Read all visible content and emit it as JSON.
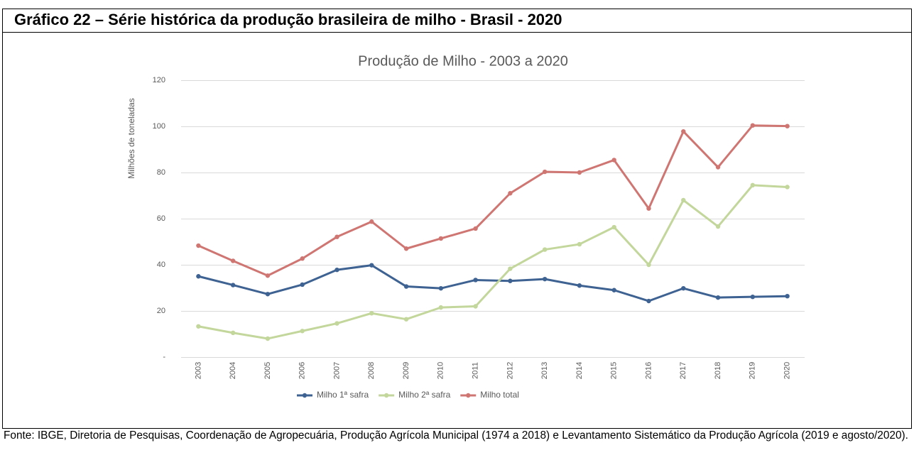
{
  "header": {
    "title": "Gráfico 22 – Série histórica da produção brasileira de milho - Brasil - 2020"
  },
  "chart_data": {
    "type": "line",
    "title": "Produção de Milho - 2003 a 2020",
    "y_label": "Milhões de toneladas",
    "categories": [
      "2003",
      "2004",
      "2005",
      "2006",
      "2007",
      "2008",
      "2009",
      "2010",
      "2011",
      "2012",
      "2013",
      "2014",
      "2015",
      "2016",
      "2017",
      "2018",
      "2019",
      "2020"
    ],
    "series": [
      {
        "name": "Milho 1ª safra",
        "color": "#3e6292",
        "values": [
          35.0,
          31.2,
          27.3,
          31.4,
          37.8,
          39.8,
          30.6,
          29.8,
          33.4,
          33.0,
          33.8,
          31.0,
          29.0,
          24.3,
          29.8,
          25.8,
          26.1,
          26.4
        ]
      },
      {
        "name": "Milho 2ª safra",
        "color": "#c3d69b",
        "values": [
          13.3,
          10.5,
          8.0,
          11.3,
          14.6,
          19.0,
          16.4,
          21.5,
          22.0,
          38.3,
          46.6,
          48.9,
          56.3,
          40.0,
          68.0,
          56.6,
          74.5,
          73.7
        ]
      },
      {
        "name": "Milho total",
        "color": "#cf7673",
        "values": [
          48.3,
          41.7,
          35.3,
          42.7,
          52.1,
          58.7,
          47.0,
          51.4,
          55.7,
          71.0,
          80.3,
          80.0,
          85.4,
          64.4,
          97.8,
          82.3,
          100.4,
          100.1
        ]
      }
    ],
    "ylim": [
      0,
      120
    ],
    "yticks": [
      {
        "value": 0,
        "label": "-"
      },
      20,
      40,
      60,
      80,
      100,
      120
    ],
    "grid": true,
    "legend": "bottom"
  },
  "footer": {
    "source": "Fonte: IBGE, Diretoria de Pesquisas, Coordenação de Agropecuária, Produção Agrícola Municipal (1974 a 2018) e Levantamento Sistemático da Produção Agrícola (2019 e agosto/2020)."
  }
}
